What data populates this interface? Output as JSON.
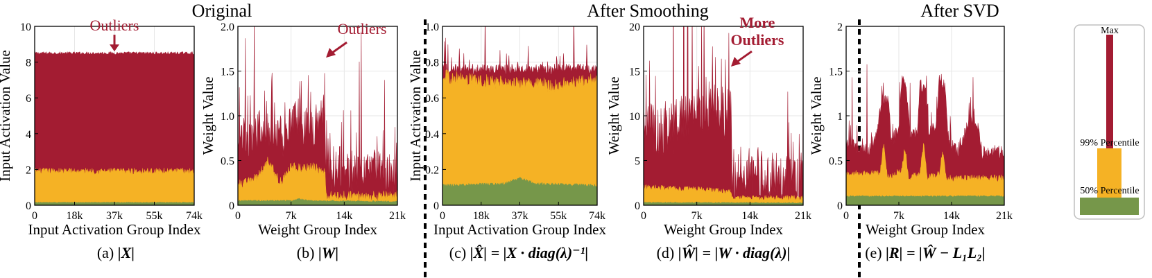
{
  "colors": {
    "max": "#a31c32",
    "p99": "#f5b225",
    "p50": "#76974a",
    "annotation": "#a31c32",
    "grid": "#e6e6e6"
  },
  "section_titles": [
    "Original",
    "After Smoothing",
    "After SVD"
  ],
  "chart_data": [
    {
      "type": "area",
      "id": "a",
      "caption_prefix": "(a)",
      "caption_formula": "|X|",
      "xlabel": "Input Activation Group Index",
      "ylabel": "Input Activation Value",
      "xticks": [
        "0",
        "18k",
        "37k",
        "55k",
        "74k"
      ],
      "xlim": [
        0,
        74
      ],
      "yticks": [
        "0",
        "2",
        "4",
        "6",
        "8",
        "10"
      ],
      "ylim": [
        0,
        10
      ],
      "annotation": {
        "text": "Outliers",
        "target_x": 37,
        "target_y": 8.6
      },
      "series": [
        {
          "name": "Max",
          "noise": 0.08,
          "spikes": 0,
          "profile": [
            [
              0,
              8.5
            ],
            [
              74,
              8.5
            ]
          ]
        },
        {
          "name": "99% Percentile",
          "noise": 0.18,
          "spikes": 0,
          "profile": [
            [
              0,
              1.9
            ],
            [
              74,
              1.9
            ]
          ]
        },
        {
          "name": "50% Percentile",
          "noise": 0.02,
          "spikes": 0,
          "profile": [
            [
              0,
              0.15
            ],
            [
              74,
              0.15
            ]
          ]
        }
      ]
    },
    {
      "type": "area",
      "id": "b",
      "caption_prefix": "(b)",
      "caption_formula": "|W|",
      "xlabel": "Weight Group Index",
      "ylabel": "Weight Value",
      "xticks": [
        "0",
        "7k",
        "14k",
        "21k"
      ],
      "xlim": [
        0,
        21
      ],
      "yticks": [
        "0",
        "0.5",
        "1.0",
        "1.5",
        "2.0"
      ],
      "ylim": [
        0,
        2.0
      ],
      "annotation": {
        "text": "Outliers",
        "target_x": 11.6,
        "target_y": 1.65
      },
      "series": [
        {
          "name": "Max",
          "noise": 0.25,
          "spikes": 0.6,
          "profile": [
            [
              0,
              0.8
            ],
            [
              2,
              0.75
            ],
            [
              4,
              0.9
            ],
            [
              6,
              0.75
            ],
            [
              8,
              0.95
            ],
            [
              10,
              0.85
            ],
            [
              11.4,
              1.0
            ],
            [
              11.6,
              0.4
            ],
            [
              14,
              0.35
            ],
            [
              17,
              0.4
            ],
            [
              21,
              0.3
            ]
          ]
        },
        {
          "name": "99% Percentile",
          "noise": 0.06,
          "spikes": 0,
          "profile": [
            [
              0,
              0.22
            ],
            [
              2.5,
              0.3
            ],
            [
              4,
              0.5
            ],
            [
              5.5,
              0.25
            ],
            [
              7,
              0.42
            ],
            [
              10,
              0.42
            ],
            [
              11.5,
              0.35
            ],
            [
              11.6,
              0.1
            ],
            [
              21,
              0.1
            ]
          ]
        },
        {
          "name": "50% Percentile",
          "noise": 0.008,
          "spikes": 0,
          "profile": [
            [
              0,
              0.05
            ],
            [
              7,
              0.05
            ],
            [
              8,
              0.07
            ],
            [
              9.5,
              0.05
            ],
            [
              21,
              0.04
            ]
          ]
        }
      ]
    },
    {
      "type": "area",
      "id": "c",
      "caption_prefix": "(c)",
      "caption_formula": "|X̂| = |X · diag(λ)⁻¹|",
      "xlabel": "Input Activation Group Index",
      "ylabel": "Input Activation Value",
      "xticks": [
        "0",
        "18k",
        "37k",
        "55k",
        "74k"
      ],
      "xlim": [
        0,
        74
      ],
      "yticks": [
        "0",
        "0.2",
        "0.4",
        "0.6",
        "0.8",
        "1.0"
      ],
      "ylim": [
        0,
        1.0
      ],
      "series": [
        {
          "name": "Max",
          "noise": 0.03,
          "spikes": 0.15,
          "profile": [
            [
              0,
              0.76
            ],
            [
              74,
              0.76
            ]
          ]
        },
        {
          "name": "99% Percentile",
          "noise": 0.04,
          "spikes": 0,
          "profile": [
            [
              0,
              0.72
            ],
            [
              30,
              0.68
            ],
            [
              55,
              0.67
            ],
            [
              74,
              0.7
            ]
          ]
        },
        {
          "name": "50% Percentile",
          "noise": 0.008,
          "spikes": 0,
          "profile": [
            [
              0,
              0.11
            ],
            [
              30,
              0.12
            ],
            [
              37,
              0.15
            ],
            [
              45,
              0.12
            ],
            [
              74,
              0.11
            ]
          ]
        }
      ]
    },
    {
      "type": "area",
      "id": "d",
      "caption_prefix": "(d)",
      "caption_formula": "|Ŵ| = |W · diag(λ)|",
      "xlabel": "Weight Group Index",
      "ylabel": "Weight Value",
      "xticks": [
        "0",
        "7k",
        "14k",
        "21k"
      ],
      "xlim": [
        0,
        21
      ],
      "yticks": [
        "0",
        "5",
        "10",
        "15",
        "20"
      ],
      "ylim": [
        0,
        20
      ],
      "annotation": {
        "text": "More\nOutliers",
        "target_x": 11.5,
        "target_y": 15.5
      },
      "series": [
        {
          "name": "Max",
          "noise": 3,
          "spikes": 10,
          "profile": [
            [
              0,
              9
            ],
            [
              3,
              8
            ],
            [
              6,
              10
            ],
            [
              8,
              11
            ],
            [
              11.5,
              10
            ],
            [
              11.6,
              3.5
            ],
            [
              14,
              4
            ],
            [
              17,
              3
            ],
            [
              21,
              3
            ]
          ]
        },
        {
          "name": "99% Percentile",
          "noise": 0.3,
          "spikes": 0,
          "profile": [
            [
              0,
              2
            ],
            [
              7,
              1.8
            ],
            [
              11.5,
              1.5
            ],
            [
              11.6,
              0.8
            ],
            [
              21,
              0.8
            ]
          ]
        },
        {
          "name": "50% Percentile",
          "noise": 0.05,
          "spikes": 0,
          "profile": [
            [
              0,
              0.3
            ],
            [
              21,
              0.25
            ]
          ]
        }
      ]
    },
    {
      "type": "area",
      "id": "e",
      "caption_prefix": "(e)",
      "caption_formula": "|R| = |Ŵ − L₁L₂|",
      "xlabel": "Weight Group Index",
      "ylabel": "Weight Value",
      "xticks": [
        "0",
        "7k",
        "14k",
        "21k"
      ],
      "xlim": [
        0,
        21
      ],
      "yticks": [
        "0",
        "0.5",
        "1",
        "1.5",
        "2"
      ],
      "ylim": [
        0,
        2
      ],
      "series": [
        {
          "name": "Max",
          "noise": 0.08,
          "spikes": 0.3,
          "profile": [
            [
              0,
              0.7
            ],
            [
              3,
              0.6
            ],
            [
              4,
              0.75
            ],
            [
              4.8,
              1.2
            ],
            [
              5.6,
              1.15
            ],
            [
              6,
              0.7
            ],
            [
              7,
              0.85
            ],
            [
              7.4,
              1.45
            ],
            [
              8,
              1.25
            ],
            [
              8.5,
              0.75
            ],
            [
              9.4,
              0.8
            ],
            [
              9.8,
              1.35
            ],
            [
              10.6,
              1.3
            ],
            [
              11,
              0.8
            ],
            [
              12,
              0.9
            ],
            [
              12.4,
              1.45
            ],
            [
              13.2,
              1.3
            ],
            [
              13.6,
              0.7
            ],
            [
              15,
              0.6
            ],
            [
              16.5,
              0.95
            ],
            [
              17.5,
              0.85
            ],
            [
              18,
              0.6
            ],
            [
              21,
              0.6
            ]
          ]
        },
        {
          "name": "99% Percentile",
          "noise": 0.04,
          "spikes": 0,
          "profile": [
            [
              0,
              0.35
            ],
            [
              4.5,
              0.35
            ],
            [
              5,
              0.7
            ],
            [
              5.5,
              0.3
            ],
            [
              7.4,
              0.4
            ],
            [
              7.8,
              0.65
            ],
            [
              8.3,
              0.3
            ],
            [
              9.8,
              0.35
            ],
            [
              10.3,
              0.7
            ],
            [
              10.8,
              0.3
            ],
            [
              12.4,
              0.35
            ],
            [
              12.8,
              0.6
            ],
            [
              13.3,
              0.3
            ],
            [
              21,
              0.3
            ]
          ]
        },
        {
          "name": "50% Percentile",
          "noise": 0.008,
          "spikes": 0,
          "profile": [
            [
              0,
              0.1
            ],
            [
              21,
              0.1
            ]
          ]
        }
      ]
    }
  ],
  "legend": {
    "labels": [
      "Max",
      "99% Percentile",
      "50% Percentile"
    ],
    "levels": [
      1.0,
      0.37,
      0.1
    ]
  }
}
